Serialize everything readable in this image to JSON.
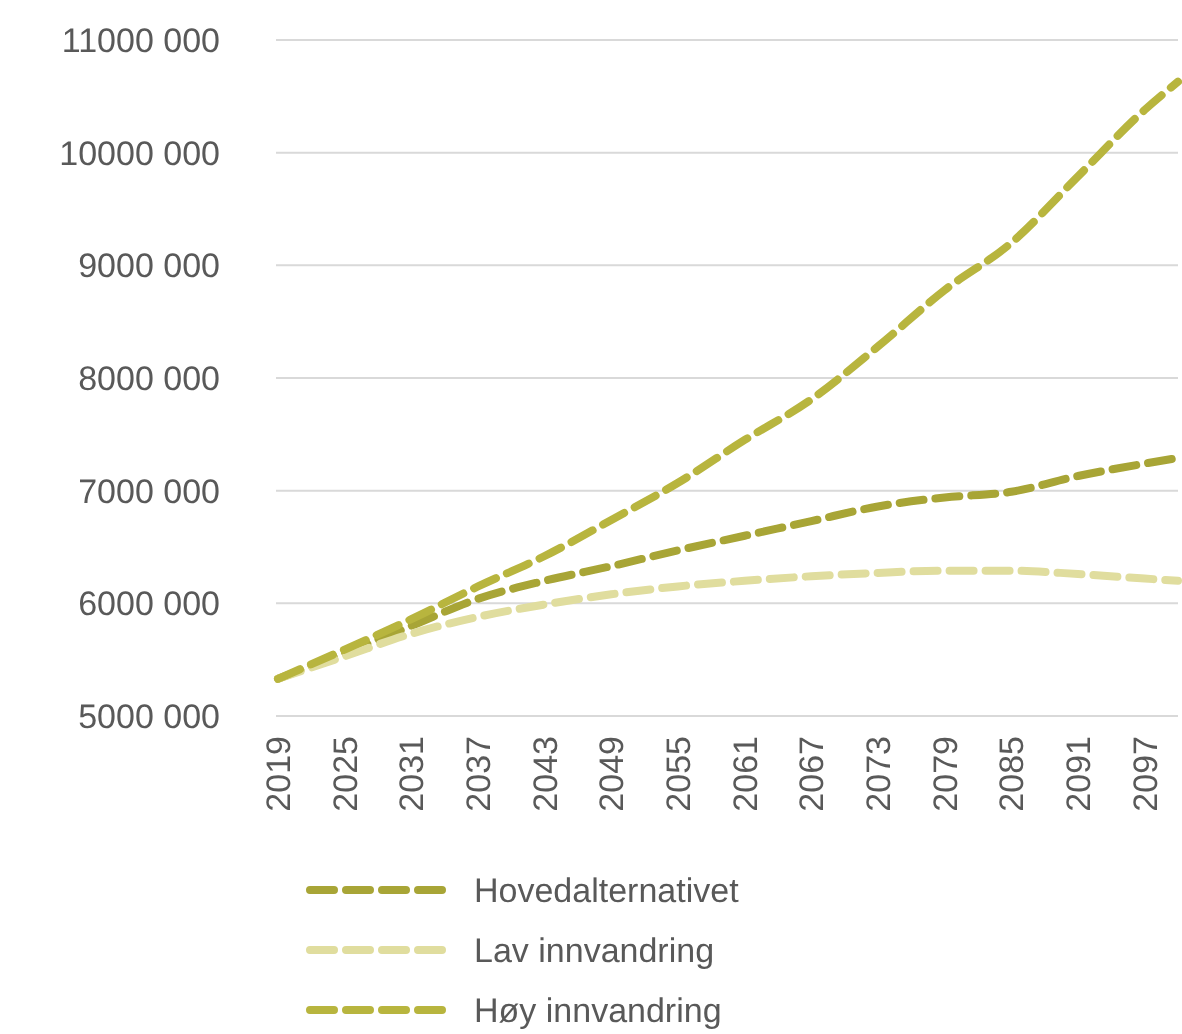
{
  "chart_data": {
    "type": "line",
    "x": [
      2019,
      2025,
      2031,
      2037,
      2043,
      2049,
      2055,
      2061,
      2067,
      2073,
      2079,
      2085,
      2091,
      2097,
      2100
    ],
    "xlim": [
      2019,
      2100
    ],
    "xticks": [
      2019,
      2025,
      2031,
      2037,
      2043,
      2049,
      2055,
      2061,
      2067,
      2073,
      2079,
      2085,
      2091,
      2097
    ],
    "ylim": [
      5000000,
      11000000
    ],
    "yticks": [
      {
        "value": 5000000,
        "label": "5000 000"
      },
      {
        "value": 6000000,
        "label": "6000 000"
      },
      {
        "value": 7000000,
        "label": "7000 000"
      },
      {
        "value": 8000000,
        "label": "8000 000"
      },
      {
        "value": 9000000,
        "label": "9000 000"
      },
      {
        "value": 10000000,
        "label": "10000 000"
      },
      {
        "value": 11000000,
        "label": "11000 000"
      }
    ],
    "grid": "y",
    "legend": "bottom",
    "line_style": "dashed",
    "marker": "none",
    "series": [
      {
        "name": "Hovedalternativet",
        "color": "#a8a536",
        "values": [
          5330000,
          5560000,
          5800000,
          6040000,
          6200000,
          6330000,
          6470000,
          6600000,
          6730000,
          6860000,
          6940000,
          6990000,
          7130000,
          7240000,
          7290000
        ]
      },
      {
        "name": "Lav innvandring",
        "color": "#e0dd9e",
        "values": [
          5330000,
          5530000,
          5730000,
          5880000,
          5990000,
          6080000,
          6150000,
          6200000,
          6240000,
          6270000,
          6290000,
          6290000,
          6260000,
          6220000,
          6200000
        ]
      },
      {
        "name": "Høy innvandring",
        "color": "#b8b53e",
        "values": [
          5330000,
          5590000,
          5860000,
          6150000,
          6420000,
          6740000,
          7070000,
          7450000,
          7810000,
          8280000,
          8780000,
          9200000,
          9790000,
          10380000,
          10630000
        ]
      }
    ]
  }
}
